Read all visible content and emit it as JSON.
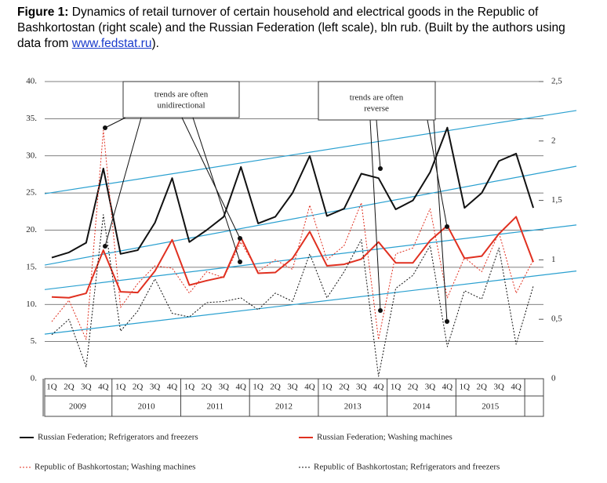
{
  "chart_data": {
    "type": "line",
    "title_label": "Figure 1:",
    "title": "Dynamics of retail turnover of certain household and electrical goods in the Republic of Bashkortostan (right scale) and the Russian Federation (left scale), bln rub. (Built by the authors using data from",
    "source_link": "www.fedstat.ru",
    "title_end": ").",
    "categories": [
      "1Q",
      "2Q",
      "3Q",
      "4Q",
      "1Q",
      "2Q",
      "3Q",
      "4Q",
      "1Q",
      "2Q",
      "3Q",
      "4Q",
      "1Q",
      "2Q",
      "3Q",
      "4Q",
      "1Q",
      "2Q",
      "3Q",
      "4Q",
      "1Q",
      "2Q",
      "3Q",
      "4Q",
      "1Q",
      "2Q",
      "3Q",
      "4Q",
      null
    ],
    "years": [
      "2009",
      "2010",
      "2011",
      "2012",
      "2013",
      "2014",
      "2015"
    ],
    "ylim": [
      0,
      40
    ],
    "yticks": [
      {
        "value": 0,
        "label": "0."
      },
      {
        "value": 5,
        "label": "5."
      },
      {
        "value": 10,
        "label": "10."
      },
      {
        "value": 15,
        "label": "15."
      },
      {
        "value": 20,
        "label": "20."
      },
      {
        "value": 25,
        "label": "25."
      },
      {
        "value": 30,
        "label": "30."
      },
      {
        "value": 35,
        "label": "35."
      },
      {
        "value": 40,
        "label": "40."
      }
    ],
    "y2lim": [
      0,
      2.5
    ],
    "y2ticks": [
      0,
      {
        "value": 0.5,
        "label": "0,5"
      },
      1,
      {
        "value": 1.5,
        "label": "1,5"
      },
      2,
      {
        "value": 2.5,
        "label": "2,5"
      }
    ],
    "series": [
      {
        "name": "Russian Federation; Refrigerators and freezers",
        "color": "#111111",
        "line_style": "solid",
        "width": 2,
        "values": [
          16.3,
          17,
          18.3,
          28.3,
          16.8,
          17.3,
          21,
          27,
          18.4,
          20,
          21.8,
          28.5,
          20.9,
          21.8,
          25,
          30,
          21.9,
          22.9,
          27.6,
          27,
          22.8,
          24,
          27.8,
          33.8,
          23,
          25,
          29.3,
          30.3,
          23
        ]
      },
      {
        "name": "Russian Federation; Washing machines",
        "color": "#e03020",
        "line_style": "solid",
        "width": 2,
        "values": [
          11,
          10.9,
          11.5,
          17.3,
          11.7,
          11.6,
          14.5,
          18.7,
          12.6,
          13.2,
          13.7,
          19,
          14.2,
          14.3,
          16.2,
          19.8,
          15.2,
          15.4,
          16.1,
          18.4,
          15.6,
          15.6,
          18.6,
          20.6,
          16.2,
          16.5,
          19.5,
          21.8,
          15.7
        ]
      },
      {
        "name": "Republic of Bashkortostan; Washing machines",
        "color": "#e03020",
        "line_style": "dotted",
        "width": 1,
        "axis": "y2",
        "values": [
          0.48,
          0.66,
          0.33,
          2.09,
          0.6,
          0.8,
          0.95,
          0.93,
          0.72,
          0.9,
          0.85,
          1.15,
          0.9,
          1.0,
          0.92,
          1.46,
          1.0,
          1.12,
          1.48,
          0.33,
          1.05,
          1.1,
          1.43,
          0.68,
          1.02,
          0.9,
          1.23,
          0.72,
          1.0
        ]
      },
      {
        "name": "Republic of Bashkortostan; Refrigerators and freezers",
        "color": "#111111",
        "line_style": "dotted",
        "width": 1,
        "axis": "y2",
        "values": [
          0.37,
          0.5,
          0.1,
          1.38,
          0.4,
          0.57,
          0.84,
          0.55,
          0.52,
          0.64,
          0.65,
          0.68,
          0.58,
          0.72,
          0.65,
          1.05,
          0.68,
          0.9,
          1.17,
          0.02,
          0.76,
          0.87,
          1.12,
          0.27,
          0.74,
          0.67,
          1.1,
          0.29,
          0.78
        ]
      }
    ],
    "trend_lines": [
      {
        "color": "#2aa0d0",
        "values": [
          24.9,
          36.1
        ]
      },
      {
        "color": "#2aa0d0",
        "values": [
          15.3,
          28.6
        ]
      },
      {
        "color": "#2aa0d0",
        "values": [
          12,
          20.7
        ]
      },
      {
        "color": "#2aa0d0",
        "values": [
          6,
          14.5
        ]
      }
    ],
    "annotations": [
      [
        "trends are often",
        "unidirectional"
      ],
      [
        "trends are often",
        "reverse"
      ]
    ]
  }
}
